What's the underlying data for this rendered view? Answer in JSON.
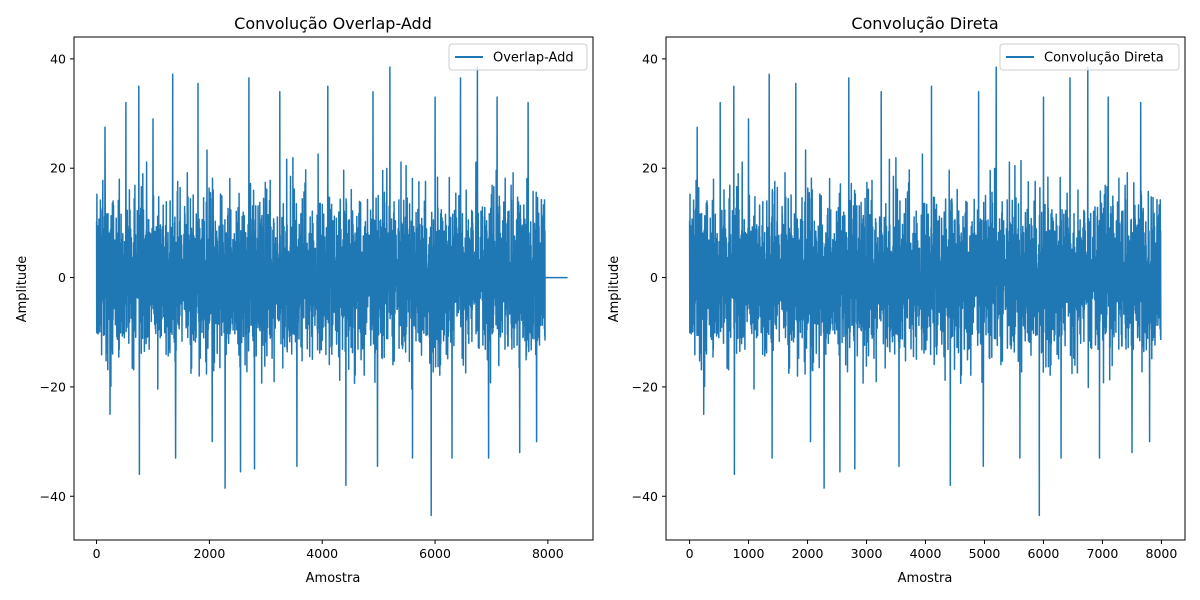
{
  "figure": {
    "background": "#ffffff"
  },
  "chart_data": [
    {
      "type": "line",
      "title": "Convolução Overlap-Add",
      "xlabel": "Amostra",
      "ylabel": "Amplitude",
      "xlim": [
        -400,
        8800
      ],
      "ylim": [
        -48,
        44
      ],
      "xticks": [
        0,
        2000,
        4000,
        6000,
        8000
      ],
      "xtick_labels": [
        "0",
        "2000",
        "4000",
        "6000",
        "8000"
      ],
      "yticks": [
        -40,
        -20,
        0,
        20,
        40
      ],
      "ytick_labels": [
        "−40",
        "−20",
        "0",
        "20",
        "40"
      ],
      "legend": {
        "position": "top-right",
        "entries": [
          {
            "label": "Overlap-Add",
            "color": "#1f77b4"
          }
        ]
      },
      "grid": false,
      "series": [
        {
          "name": "Overlap-Add",
          "color": "#1f77b4",
          "signal_x_range": [
            0,
            7950
          ],
          "zero_tail_x_range": [
            7950,
            8350
          ],
          "approx_envelope": {
            "typical_min": -22,
            "typical_max": 24
          },
          "peaks": [
            [
              150,
              27.5
            ],
            [
              520,
              32
            ],
            [
              750,
              35
            ],
            [
              1000,
              29
            ],
            [
              1350,
              37.2
            ],
            [
              1800,
              35.5
            ],
            [
              2550,
              39.5
            ],
            [
              2700,
              36.5
            ],
            [
              3250,
              34
            ],
            [
              4100,
              35
            ],
            [
              4900,
              34
            ],
            [
              5200,
              38.5
            ],
            [
              5600,
              34
            ],
            [
              6000,
              33
            ],
            [
              6450,
              36.5
            ],
            [
              6750,
              38.5
            ],
            [
              7100,
              33
            ],
            [
              7650,
              32
            ],
            [
              240,
              -25
            ],
            [
              760,
              -36
            ],
            [
              1400,
              -33
            ],
            [
              2050,
              -30
            ],
            [
              2280,
              -38.5
            ],
            [
              2550,
              -35.5
            ],
            [
              2800,
              -35
            ],
            [
              3550,
              -34.5
            ],
            [
              4420,
              -38
            ],
            [
              4980,
              -34.5
            ],
            [
              5600,
              -33
            ],
            [
              5930,
              -43.5
            ],
            [
              6300,
              -33
            ],
            [
              6950,
              -33
            ],
            [
              7500,
              -32
            ],
            [
              7800,
              -30
            ]
          ]
        }
      ]
    },
    {
      "type": "line",
      "title": "Convolução Direta",
      "xlabel": "Amostra",
      "ylabel": "Amplitude",
      "xlim": [
        -400,
        8400
      ],
      "ylim": [
        -48,
        44
      ],
      "xticks": [
        0,
        1000,
        2000,
        3000,
        4000,
        5000,
        6000,
        7000,
        8000
      ],
      "xtick_labels": [
        "0",
        "1000",
        "2000",
        "3000",
        "4000",
        "5000",
        "6000",
        "7000",
        "8000"
      ],
      "yticks": [
        -40,
        -20,
        0,
        20,
        40
      ],
      "ytick_labels": [
        "−40",
        "−20",
        "0",
        "20",
        "40"
      ],
      "legend": {
        "position": "top-right",
        "entries": [
          {
            "label": "Convolução Direta",
            "color": "#1f77b4"
          }
        ]
      },
      "grid": false,
      "series": [
        {
          "name": "Convolução Direta",
          "color": "#1f77b4",
          "signal_x_range": [
            0,
            7990
          ],
          "approx_envelope": {
            "typical_min": -22,
            "typical_max": 24
          },
          "peaks": [
            [
              130,
              27.5
            ],
            [
              520,
              32
            ],
            [
              750,
              35
            ],
            [
              1000,
              29
            ],
            [
              1350,
              37.2
            ],
            [
              1800,
              35.5
            ],
            [
              2550,
              39.5
            ],
            [
              2700,
              36.5
            ],
            [
              3250,
              34
            ],
            [
              4100,
              35
            ],
            [
              4900,
              34
            ],
            [
              5200,
              38.5
            ],
            [
              5600,
              34
            ],
            [
              6000,
              33
            ],
            [
              6450,
              36.5
            ],
            [
              6750,
              38.5
            ],
            [
              7100,
              33
            ],
            [
              7650,
              32
            ],
            [
              240,
              -25
            ],
            [
              760,
              -36
            ],
            [
              1400,
              -33
            ],
            [
              2050,
              -30
            ],
            [
              2280,
              -38.5
            ],
            [
              2550,
              -35.5
            ],
            [
              2800,
              -35
            ],
            [
              3550,
              -34.5
            ],
            [
              4420,
              -38
            ],
            [
              4980,
              -34.5
            ],
            [
              5600,
              -33
            ],
            [
              5930,
              -43.5
            ],
            [
              6300,
              -33
            ],
            [
              6950,
              -33
            ],
            [
              7500,
              -32
            ],
            [
              7800,
              -30
            ]
          ]
        }
      ]
    }
  ]
}
